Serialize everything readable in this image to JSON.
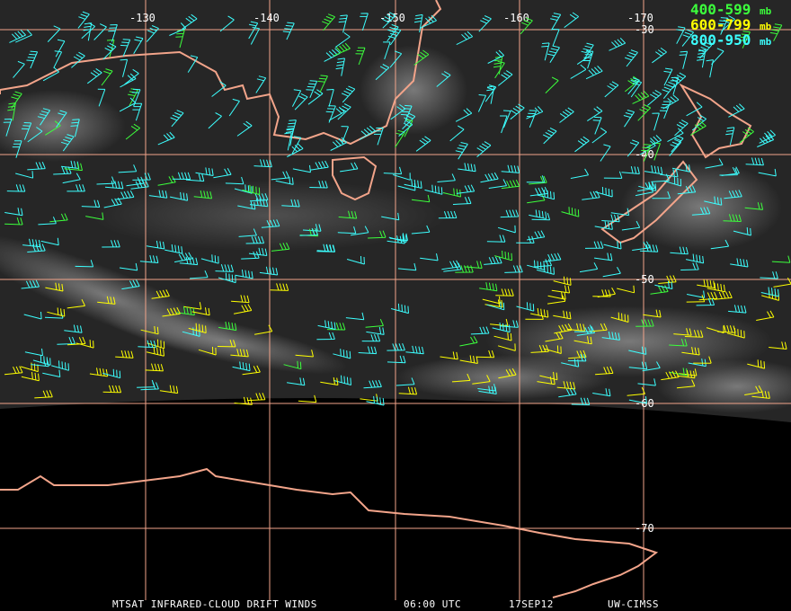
{
  "map": {
    "grid": {
      "longitudes": [
        -130,
        -140,
        -150,
        -160,
        -170
      ],
      "latitudes": [
        -30,
        -40,
        -50,
        -60,
        -70
      ],
      "color": "#f2a48a"
    },
    "legend": [
      {
        "label": "400-599",
        "unit": "mb",
        "color": "#3cff3c"
      },
      {
        "label": "600-799",
        "unit": "mb",
        "color": "#ffff00"
      },
      {
        "label": "800-950",
        "unit": "mb",
        "color": "#3cffff"
      }
    ],
    "footer": {
      "product": "MTSAT INFRARED-CLOUD DRIFT WINDS",
      "time": "06:00 UTC",
      "date": "17SEP12",
      "source": "UW-CIMSS"
    }
  }
}
